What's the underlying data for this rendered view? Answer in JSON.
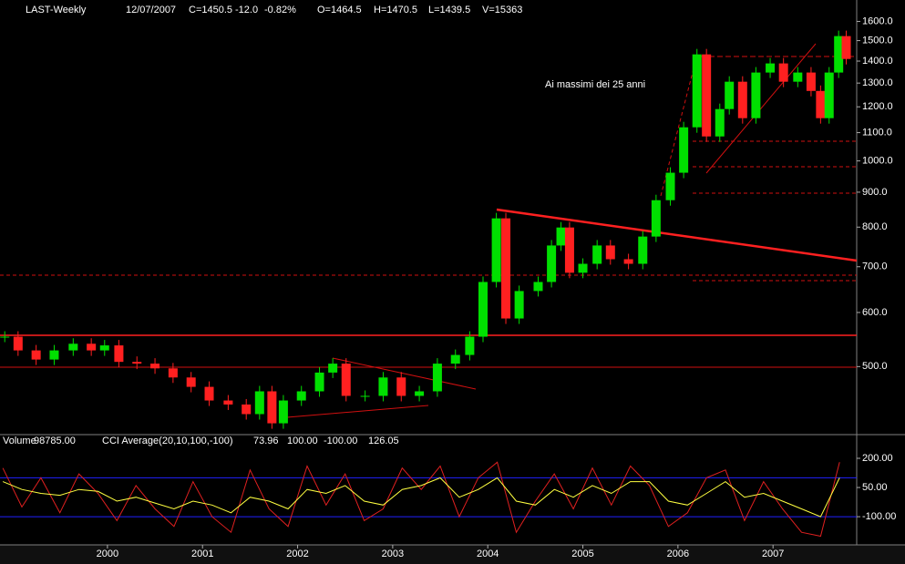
{
  "chart_data": [
    {
      "type": "candle-close",
      "title": "LAST-Weekly",
      "header": [
        {
          "text": "12/07/2007",
          "color": "#ffffff"
        },
        {
          "text": "C=1450.5",
          "color": "#ff3030"
        },
        {
          "text": "-12.0",
          "color": "#ff3030"
        },
        {
          "text": "-0.82%",
          "color": "#ff3030"
        },
        {
          "text": "O=1464.5",
          "color": "#ffffff"
        },
        {
          "text": "H=1470.5",
          "color": "#ffffff"
        },
        {
          "text": "L=1439.5",
          "color": "#ffffff"
        },
        {
          "text": "V=15363",
          "color": "#ffffff"
        }
      ],
      "title_color": "#00ff00",
      "annotation": "Ai massimi dei 25 anni",
      "annotation_color": "#ff2020",
      "log_scale": true,
      "colors": {
        "up": "#00e000",
        "down": "#ff2020"
      },
      "x": [
        1998.92,
        1999.06,
        1999.25,
        1999.44,
        1999.64,
        1999.83,
        1999.97,
        2000.12,
        2000.31,
        2000.5,
        2000.69,
        2000.88,
        2001.07,
        2001.27,
        2001.46,
        2001.6,
        2001.73,
        2001.85,
        2002.04,
        2002.23,
        2002.37,
        2002.51,
        2002.71,
        2002.9,
        2003.09,
        2003.28,
        2003.47,
        2003.66,
        2003.81,
        2003.95,
        2004.09,
        2004.19,
        2004.33,
        2004.53,
        2004.67,
        2004.77,
        2004.86,
        2005.0,
        2005.15,
        2005.29,
        2005.48,
        2005.63,
        2005.77,
        2005.92,
        2006.06,
        2006.2,
        2006.3,
        2006.44,
        2006.54,
        2006.68,
        2006.82,
        2006.97,
        2007.11,
        2007.26,
        2007.4,
        2007.5,
        2007.59,
        2007.69,
        2007.77
      ],
      "series": [
        {
          "name": "LAST",
          "values": [
            553,
            528,
            512,
            528,
            540,
            528,
            537,
            508,
            505,
            497,
            482,
            467,
            446,
            440,
            426,
            460,
            413,
            446,
            460,
            490,
            505,
            453,
            453,
            482,
            453,
            460,
            505,
            520,
            553,
            665,
            824,
            588,
            645,
            665,
            752,
            799,
            686,
            707,
            752,
            718,
            707,
            775,
            876,
            961,
            1120,
            1432,
            1086,
            1191,
            1306,
            1155,
            1347,
            1389,
            1306,
            1347,
            1266,
            1155,
            1347,
            1523,
            1410
          ]
        }
      ],
      "xlim": [
        1998.87,
        2007.88
      ],
      "xticks": [
        2000,
        2001,
        2002,
        2003,
        2004,
        2005,
        2006,
        2007
      ],
      "ylim": [
        400,
        1720
      ],
      "yticks": [
        {
          "value": 500,
          "label": "500.0"
        },
        {
          "value": 600,
          "label": "600.0"
        },
        {
          "value": 700,
          "label": "700.0"
        },
        {
          "value": 800,
          "label": "800.0"
        },
        {
          "value": 900,
          "label": "900.0"
        },
        {
          "value": 1000,
          "label": "1000.0"
        },
        {
          "value": 1100,
          "label": "1100.0"
        },
        {
          "value": 1200,
          "label": "1200.0"
        },
        {
          "value": 1300,
          "label": "1300.0"
        },
        {
          "value": 1400,
          "label": "1400.0"
        },
        {
          "value": 1500,
          "label": "1500.0"
        },
        {
          "value": 1600,
          "label": "1600.0"
        }
      ]
    },
    {
      "type": "line",
      "header": [
        {
          "text": "Volume",
          "color": "#ffffff"
        },
        {
          "text": "98785.00",
          "color": "#00a000"
        },
        {
          "text": "CCI Average(20,10,100,-100)",
          "color": "#ffffff"
        },
        {
          "text": "73.96",
          "color": "#ff3030"
        },
        {
          "text": "100.00",
          "color": "#3030ff"
        },
        {
          "text": "-100.00",
          "color": "#3030ff"
        },
        {
          "text": "126.05",
          "color": "#ffff40"
        }
      ],
      "x": [
        1998.9,
        1999.1,
        1999.3,
        1999.5,
        1999.7,
        1999.9,
        2000.1,
        2000.3,
        2000.5,
        2000.7,
        2000.9,
        2001.1,
        2001.3,
        2001.5,
        2001.7,
        2001.9,
        2002.1,
        2002.3,
        2002.5,
        2002.7,
        2002.9,
        2003.1,
        2003.3,
        2003.5,
        2003.7,
        2003.9,
        2004.1,
        2004.3,
        2004.5,
        2004.7,
        2004.9,
        2005.1,
        2005.3,
        2005.5,
        2005.7,
        2005.9,
        2006.1,
        2006.3,
        2006.5,
        2006.7,
        2006.9,
        2007.1,
        2007.3,
        2007.5,
        2007.7
      ],
      "series": [
        {
          "name": "CCI",
          "color": "#e02020",
          "values": [
            150,
            -50,
            100,
            -80,
            120,
            20,
            -120,
            60,
            -60,
            -150,
            80,
            -100,
            -180,
            140,
            -60,
            -150,
            160,
            -40,
            120,
            -120,
            -60,
            150,
            40,
            160,
            -100,
            100,
            180,
            -180,
            -20,
            120,
            -60,
            150,
            -40,
            160,
            60,
            -150,
            -80,
            100,
            140,
            -120,
            80,
            -60,
            -180,
            -200,
            180
          ]
        },
        {
          "name": "Average",
          "color": "#ffff40",
          "values": [
            80,
            40,
            20,
            10,
            40,
            30,
            -20,
            0,
            -30,
            -60,
            -20,
            -40,
            -80,
            0,
            -20,
            -60,
            40,
            20,
            60,
            -20,
            -40,
            40,
            60,
            100,
            0,
            40,
            100,
            -20,
            -40,
            40,
            0,
            60,
            20,
            80,
            80,
            -20,
            -40,
            20,
            80,
            0,
            20,
            -20,
            -60,
            -100,
            100
          ]
        }
      ],
      "levels": [
        100,
        -100
      ],
      "level_color": "#2020ff",
      "ylim": [
        -240,
        317
      ],
      "yticks": [
        {
          "value": 200,
          "label": "200.00"
        },
        {
          "value": 50,
          "label": "50.00"
        },
        {
          "value": -100,
          "label": "-100.00"
        }
      ]
    }
  ]
}
